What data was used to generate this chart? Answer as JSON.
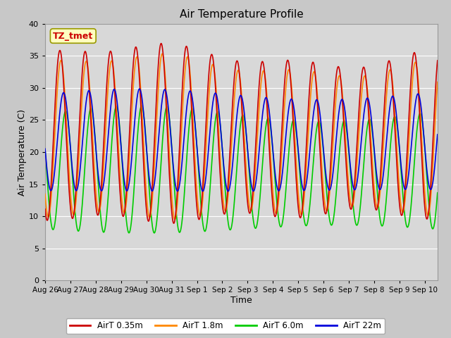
{
  "title": "Air Temperature Profile",
  "xlabel": "Time",
  "ylabel": "Air Temperature (C)",
  "ylim": [
    0,
    40
  ],
  "yticks": [
    0,
    5,
    10,
    15,
    20,
    25,
    30,
    35,
    40
  ],
  "fig_bg_color": "#c8c8c8",
  "plot_bg_color": "#d8d8d8",
  "grid_color": "#ffffff",
  "tz_label": "TZ_tmet",
  "tz_box_color": "#ffffc0",
  "tz_text_color": "#cc0000",
  "tz_edge_color": "#999900",
  "legend_entries": [
    "AirT 0.35m",
    "AirT 1.8m",
    "AirT 6.0m",
    "AirT 22m"
  ],
  "line_colors": [
    "#cc0000",
    "#ff8800",
    "#00cc00",
    "#0000dd"
  ],
  "xtick_labels": [
    "Aug 26",
    "Aug 27",
    "Aug 28",
    "Aug 29",
    "Aug 30",
    "Aug 31",
    "Sep 1",
    "Sep 2",
    "Sep 3",
    "Sep 4",
    "Sep 5",
    "Sep 6",
    "Sep 7",
    "Sep 8",
    "Sep 9",
    "Sep 10"
  ],
  "n_days": 15.5
}
